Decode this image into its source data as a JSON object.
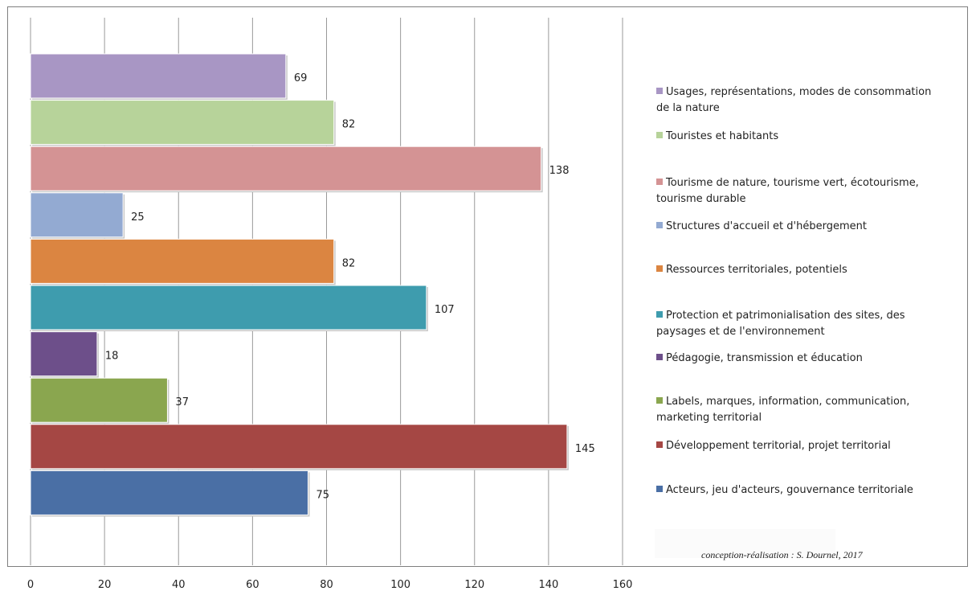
{
  "chart_data": {
    "type": "bar",
    "orientation": "horizontal",
    "title": "",
    "categories": [
      "Usages, représentations, modes de consommation de la nature",
      "Touristes et habitants",
      "Tourisme de nature, tourisme vert, écotourisme, tourisme durable",
      "Structures d'accueil et d'hébergement",
      "Ressources territoriales, potentiels",
      "Protection et patrimonialisation  des sites, des paysages et de l'environnement",
      "Pédagogie, transmission et éducation",
      "Labels, marques, information, communication, marketing territorial",
      "Développement territorial, projet territorial",
      "Acteurs, jeu d'acteurs, gouvernance territoriale"
    ],
    "legend_lines": [
      [
        "Usages, représentations, modes de consommation",
        "de la nature"
      ],
      [
        "Touristes et habitants"
      ],
      [
        "Tourisme de nature, tourisme vert, écotourisme,",
        "tourisme durable"
      ],
      [
        "Structures d'accueil et d'hébergement"
      ],
      [
        "Ressources territoriales, potentiels"
      ],
      [
        "Protection et patrimonialisation  des sites, des",
        "paysages et de l'environnement"
      ],
      [
        "Pédagogie, transmission et éducation"
      ],
      [
        "Labels, marques, information, communication,",
        "marketing territorial"
      ],
      [
        "Développement territorial, projet territorial"
      ],
      [
        "Acteurs, jeu d'acteurs, gouvernance territoriale"
      ]
    ],
    "values": [
      69,
      82,
      138,
      25,
      82,
      107,
      18,
      37,
      145,
      75
    ],
    "colors": [
      "#a896c4",
      "#b7d39a",
      "#d49394",
      "#93aad2",
      "#db8541",
      "#3e9cae",
      "#6d4f8a",
      "#8aa64f",
      "#a54744",
      "#4a6fa5"
    ],
    "xlim": [
      0,
      160
    ],
    "xticks": [
      0,
      20,
      40,
      60,
      80,
      100,
      120,
      140,
      160
    ],
    "xlabel": "",
    "ylabel": "",
    "grid": "vertical",
    "legend_position": "right"
  },
  "credit": "conception-réalisation : S. Dournel, 2017"
}
